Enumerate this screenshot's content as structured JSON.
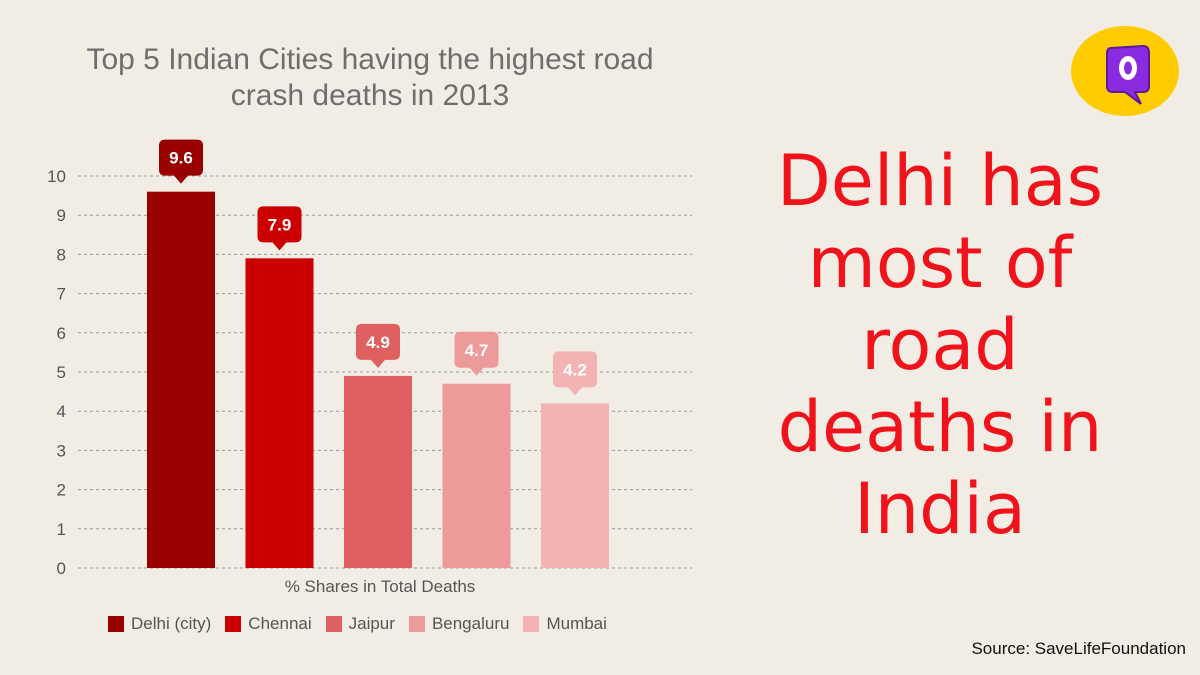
{
  "chart_data": {
    "type": "bar",
    "title_lines": [
      "Top 5 Indian Cities having the highest road",
      "crash deaths in 2013"
    ],
    "xlabel": "% Shares in Total Deaths",
    "ylabel": "",
    "ylim": [
      0,
      10
    ],
    "yticks": [
      0,
      1,
      2,
      3,
      4,
      5,
      6,
      7,
      8,
      9,
      10
    ],
    "grid": true,
    "legend_position": "bottom",
    "categories": [
      "Delhi (city)",
      "Chennai",
      "Jaipur",
      "Bengaluru",
      "Mumbai"
    ],
    "values": [
      9.6,
      7.9,
      4.9,
      4.7,
      4.2
    ],
    "data_labels": [
      "9.6",
      "7.9",
      "4.9",
      "4.7",
      "4.2"
    ],
    "colors": [
      "#990000",
      "#cc0000",
      "#e06060",
      "#ec9a9a",
      "#f3b3b3"
    ]
  },
  "headline": {
    "lines": [
      "Delhi has",
      "most of",
      "road",
      "deaths in",
      "India"
    ],
    "color": "#f0131b"
  },
  "source": "Source: SaveLifeFoundation",
  "logo": {
    "icon": "quint-logo-icon",
    "bg_color": "#ffcc00",
    "mark_color": "#8a2be2"
  }
}
